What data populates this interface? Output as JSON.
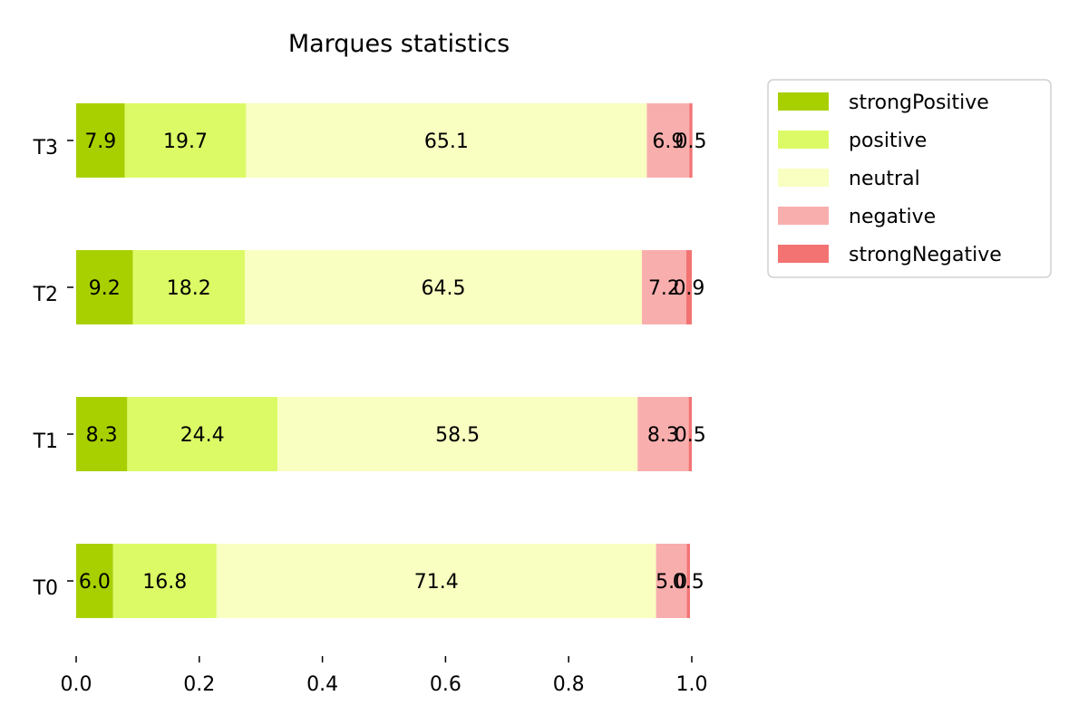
{
  "chart_data": {
    "type": "bar",
    "orientation": "horizontal",
    "stacked": true,
    "title": "Marques statistics",
    "xlabel": "",
    "ylabel": "",
    "xlim": [
      0,
      1
    ],
    "x_ticks": [
      "0.0",
      "0.2",
      "0.4",
      "0.6",
      "0.8",
      "1.0"
    ],
    "categories": [
      "T0",
      "T1",
      "T2",
      "T3"
    ],
    "grid": false,
    "legend_position": "outside upper right",
    "series": [
      {
        "name": "strongPositive",
        "color": "#a8d000",
        "values": [
          0.06,
          0.083,
          0.092,
          0.079
        ],
        "labels": [
          "6.0",
          "8.3",
          "9.2",
          "7.9"
        ]
      },
      {
        "name": "positive",
        "color": "#dcfa66",
        "values": [
          0.168,
          0.244,
          0.182,
          0.197
        ],
        "labels": [
          "16.8",
          "24.4",
          "18.2",
          "19.7"
        ]
      },
      {
        "name": "neutral",
        "color": "#f8ffc0",
        "values": [
          0.714,
          0.585,
          0.645,
          0.651
        ],
        "labels": [
          "71.4",
          "58.5",
          "64.5",
          "65.1"
        ]
      },
      {
        "name": "negative",
        "color": "#f9aeae",
        "values": [
          0.05,
          0.083,
          0.072,
          0.069
        ],
        "labels": [
          "5.0",
          "8.3",
          "7.2",
          "6.9"
        ]
      },
      {
        "name": "strongNegative",
        "color": "#f37373",
        "values": [
          0.005,
          0.005,
          0.009,
          0.005
        ],
        "labels": [
          "0.5",
          "0.5",
          "0.9",
          "0.5"
        ]
      }
    ]
  }
}
